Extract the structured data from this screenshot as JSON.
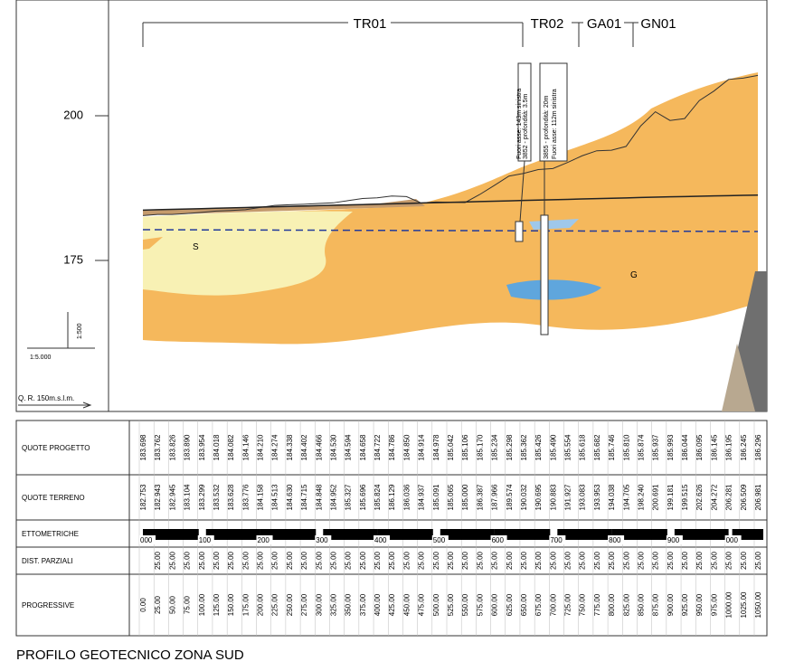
{
  "sections": [
    "TR01",
    "TR02",
    "GA01",
    "GN01"
  ],
  "elevation_labels": [
    "200",
    "175"
  ],
  "scale_vertical": "1:500",
  "scale_horizontal": "1:5.000",
  "datum": "Q. R. 150m.s.l.m.",
  "soil_labels": [
    "S",
    "G"
  ],
  "boreholes": [
    {
      "line1": "3852 - profondità: 3.5m",
      "line2": "Fuori asse: 143m sinistra"
    },
    {
      "line1": "3855 - profondità: 20m",
      "line2": "Fuori asse: 112m sinistra"
    }
  ],
  "table": {
    "row_labels": [
      "QUOTE PROGETTO",
      "QUOTE TERRENO",
      "ETTOMETRICHE",
      "DIST. PARZIALI",
      "PROGRESSIVE"
    ],
    "quote_progetto": [
      "183.698",
      "183.762",
      "183.826",
      "183.890",
      "183.954",
      "184.018",
      "184.082",
      "184.146",
      "184.210",
      "184.274",
      "184.338",
      "184.402",
      "184.466",
      "184.530",
      "184.594",
      "184.658",
      "184.722",
      "184.786",
      "184.850",
      "184.914",
      "184.978",
      "185.042",
      "185.106",
      "185.170",
      "185.234",
      "185.298",
      "185.362",
      "185.426",
      "185.490",
      "185.554",
      "185.618",
      "185.682",
      "185.746",
      "185.810",
      "185.874",
      "185.937",
      "185.993",
      "186.044",
      "186.095",
      "186.145",
      "186.195",
      "186.245",
      "186.296"
    ],
    "quote_terreno": [
      "182.753",
      "182.943",
      "182.945",
      "183.104",
      "183.299",
      "183.532",
      "183.628",
      "183.776",
      "184.158",
      "184.513",
      "184.630",
      "184.715",
      "184.848",
      "184.952",
      "185.327",
      "185.696",
      "185.824",
      "186.129",
      "186.036",
      "184.937",
      "185.091",
      "185.065",
      "185.000",
      "186.387",
      "187.966",
      "189.574",
      "190.032",
      "190.695",
      "190.883",
      "191.927",
      "193.083",
      "193.953",
      "194.038",
      "194.705",
      "198.240",
      "200.691",
      "199.181",
      "199.515",
      "202.626",
      "204.272",
      "206.281",
      "206.509",
      "206.981"
    ],
    "ettometriche": [
      "000",
      "100",
      "200",
      "300",
      "400",
      "500",
      "600",
      "700",
      "800",
      "900",
      "000"
    ],
    "dist_parziali": [
      "25.00",
      "25.00",
      "25.00",
      "25.00",
      "25.00",
      "25.00",
      "25.00",
      "25.00",
      "25.00",
      "25.00",
      "25.00",
      "25.00",
      "25.00",
      "25.00",
      "25.00",
      "25.00",
      "25.00",
      "25.00",
      "25.00",
      "25.00",
      "25.00",
      "25.00",
      "25.00",
      "25.00",
      "25.00",
      "25.00",
      "25.00",
      "25.00",
      "25.00",
      "25.00",
      "25.00",
      "25.00",
      "25.00",
      "25.00",
      "25.00",
      "25.00",
      "25.00",
      "25.00",
      "25.00",
      "25.00",
      "25.00",
      "25.00"
    ],
    "progressive": [
      "0.00",
      "25.00",
      "50.00",
      "75.00",
      "100.00",
      "125.00",
      "150.00",
      "175.00",
      "200.00",
      "225.00",
      "250.00",
      "275.00",
      "300.00",
      "325.00",
      "350.00",
      "375.00",
      "400.00",
      "425.00",
      "450.00",
      "475.00",
      "500.00",
      "525.00",
      "550.00",
      "575.00",
      "600.00",
      "625.00",
      "650.00",
      "675.00",
      "700.00",
      "725.00",
      "750.00",
      "775.00",
      "800.00",
      "825.00",
      "850.00",
      "875.00",
      "900.00",
      "925.00",
      "950.00",
      "975.00",
      "1000.00",
      "1025.00",
      "1050.00"
    ]
  },
  "title": "PROFILO GEOTECNICO ZONA SUD"
}
